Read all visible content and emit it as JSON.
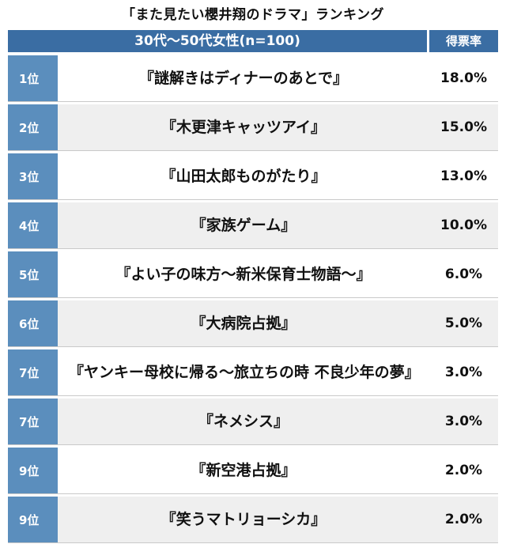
{
  "title": "「また見たい櫻井翔のドラマ」ランキング",
  "header": {
    "group_label": "30代〜50代女性(n=100)",
    "rate_label": "得票率"
  },
  "chart_data": {
    "type": "table",
    "title": "「また見たい櫻井翔のドラマ」ランキング",
    "columns": [
      "30代〜50代女性(n=100)",
      "得票率"
    ],
    "rows": [
      {
        "rank": "1位",
        "name": "『謎解きはディナーのあとで』",
        "rate": "18.0%"
      },
      {
        "rank": "2位",
        "name": "『木更津キャッツアイ』",
        "rate": "15.0%"
      },
      {
        "rank": "3位",
        "name": "『山田太郎ものがたり』",
        "rate": "13.0%"
      },
      {
        "rank": "4位",
        "name": "『家族ゲーム』",
        "rate": "10.0%"
      },
      {
        "rank": "5位",
        "name": "『よい子の味方〜新米保育士物語〜』",
        "rate": "6.0%"
      },
      {
        "rank": "6位",
        "name": "『大病院占拠』",
        "rate": "5.0%"
      },
      {
        "rank": "7位",
        "name": "『ヤンキー母校に帰る〜旅立ちの時 不良少年の夢』",
        "rate": "3.0%"
      },
      {
        "rank": "7位",
        "name": "『ネメシス』",
        "rate": "3.0%"
      },
      {
        "rank": "9位",
        "name": "『新空港占拠』",
        "rate": "2.0%"
      },
      {
        "rank": "9位",
        "name": "『笑うマトリョーシカ』",
        "rate": "2.0%"
      }
    ],
    "colors": {
      "header": "#3a6da3",
      "rank_cell": "#5b8ebd",
      "alt_row": "#efefef"
    }
  }
}
